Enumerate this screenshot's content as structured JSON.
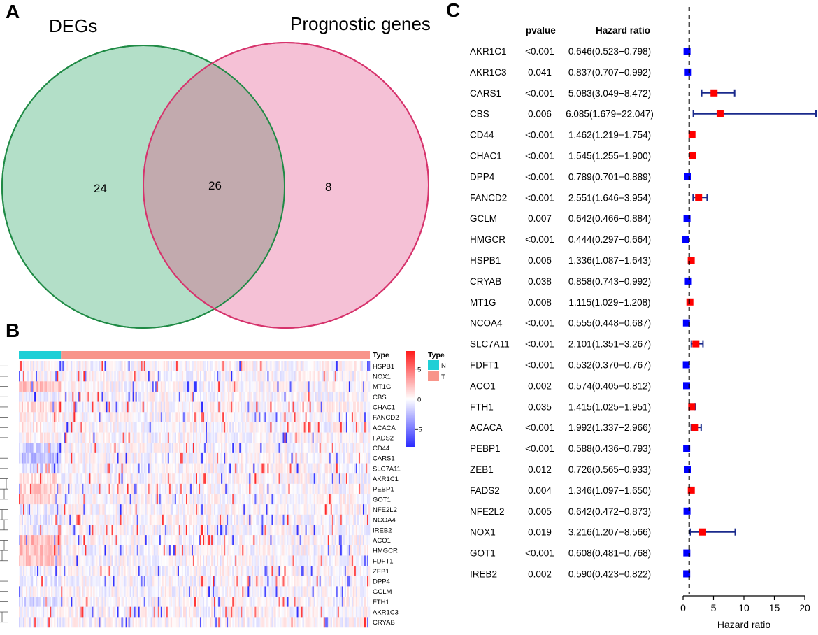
{
  "panels": {
    "a": "A",
    "b": "B",
    "c": "C"
  },
  "chart_data": [
    {
      "type": "venn",
      "sets": [
        {
          "name": "DEGs",
          "color": "#b3dfc8",
          "stroke": "#1f8a45"
        },
        {
          "name": "Prognostic genes",
          "color": "#f5c1d6",
          "stroke": "#d6336c"
        }
      ],
      "only_left": 24,
      "intersection": 26,
      "only_right": 8,
      "intersection_color": "#c2aaae"
    },
    {
      "type": "heatmap",
      "column_annotation_title": "Type",
      "groups": [
        {
          "label": "N",
          "color": "#1fcfd6",
          "fraction": 0.12
        },
        {
          "label": "T",
          "color": "#f8958a",
          "fraction": 0.88
        }
      ],
      "legend_title": "Type",
      "color_scale": {
        "min": -8,
        "max": 8,
        "ticks": [
          5,
          0,
          -5
        ],
        "low": "#2a2aff",
        "mid": "#ffffff",
        "high": "#ff1a1a"
      },
      "rows": [
        "HSPB1",
        "NOX1",
        "MT1G",
        "CBS",
        "CHAC1",
        "FANCD2",
        "ACACA",
        "FADS2",
        "CD44",
        "CARS1",
        "SLC7A11",
        "AKR1C1",
        "PEBP1",
        "GOT1",
        "NFE2L2",
        "NCOA4",
        "IREB2",
        "ACO1",
        "HMGCR",
        "FDFT1",
        "ZEB1",
        "DPP4",
        "GCLM",
        "FTH1",
        "AKR1C3",
        "CRYAB"
      ],
      "normal_group_bias": [
        -0.1,
        0.05,
        1.6,
        -0.25,
        0.8,
        0.25,
        0.5,
        0.2,
        -1.1,
        -1.4,
        -0.9,
        0.8,
        1.1,
        1.2,
        -0.3,
        -0.45,
        -0.4,
        1.6,
        1.4,
        1.2,
        -0.2,
        -0.5,
        -0.1,
        -0.8,
        -0.2,
        -0.3
      ]
    },
    {
      "type": "forest",
      "col_headers": {
        "pvalue": "pvalue",
        "hr": "Hazard ratio"
      },
      "xlabel": "Hazard ratio",
      "xlim": [
        0,
        21
      ],
      "xticks": [
        0,
        5,
        10,
        15,
        20
      ],
      "reference_line": 1,
      "high_color": "#ff0000",
      "low_color": "#0000ff",
      "ci_color": "#1a2a8c",
      "genes": [
        {
          "gene": "AKR1C1",
          "pvalue": "<0.001",
          "hr_text": "0.646(0.523−0.798)",
          "hr": 0.646,
          "lo": 0.523,
          "hi": 0.798
        },
        {
          "gene": "AKR1C3",
          "pvalue": "0.041",
          "hr_text": "0.837(0.707−0.992)",
          "hr": 0.837,
          "lo": 0.707,
          "hi": 0.992
        },
        {
          "gene": "CARS1",
          "pvalue": "<0.001",
          "hr_text": "5.083(3.049−8.472)",
          "hr": 5.083,
          "lo": 3.049,
          "hi": 8.472
        },
        {
          "gene": "CBS",
          "pvalue": "0.006",
          "hr_text": "6.085(1.679−22.047)",
          "hr": 6.085,
          "lo": 1.679,
          "hi": 22.047
        },
        {
          "gene": "CD44",
          "pvalue": "<0.001",
          "hr_text": "1.462(1.219−1.754)",
          "hr": 1.462,
          "lo": 1.219,
          "hi": 1.754
        },
        {
          "gene": "CHAC1",
          "pvalue": "<0.001",
          "hr_text": "1.545(1.255−1.900)",
          "hr": 1.545,
          "lo": 1.255,
          "hi": 1.9
        },
        {
          "gene": "DPP4",
          "pvalue": "<0.001",
          "hr_text": "0.789(0.701−0.889)",
          "hr": 0.789,
          "lo": 0.701,
          "hi": 0.889
        },
        {
          "gene": "FANCD2",
          "pvalue": "<0.001",
          "hr_text": "2.551(1.646−3.954)",
          "hr": 2.551,
          "lo": 1.646,
          "hi": 3.954
        },
        {
          "gene": "GCLM",
          "pvalue": "0.007",
          "hr_text": "0.642(0.466−0.884)",
          "hr": 0.642,
          "lo": 0.466,
          "hi": 0.884
        },
        {
          "gene": "HMGCR",
          "pvalue": "<0.001",
          "hr_text": "0.444(0.297−0.664)",
          "hr": 0.444,
          "lo": 0.297,
          "hi": 0.664
        },
        {
          "gene": "HSPB1",
          "pvalue": "0.006",
          "hr_text": "1.336(1.087−1.643)",
          "hr": 1.336,
          "lo": 1.087,
          "hi": 1.643
        },
        {
          "gene": "CRYAB",
          "pvalue": "0.038",
          "hr_text": "0.858(0.743−0.992)",
          "hr": 0.858,
          "lo": 0.743,
          "hi": 0.992
        },
        {
          "gene": "MT1G",
          "pvalue": "0.008",
          "hr_text": "1.115(1.029−1.208)",
          "hr": 1.115,
          "lo": 1.029,
          "hi": 1.208
        },
        {
          "gene": "NCOA4",
          "pvalue": "<0.001",
          "hr_text": "0.555(0.448−0.687)",
          "hr": 0.555,
          "lo": 0.448,
          "hi": 0.687
        },
        {
          "gene": "SLC7A11",
          "pvalue": "<0.001",
          "hr_text": "2.101(1.351−3.267)",
          "hr": 2.101,
          "lo": 1.351,
          "hi": 3.267
        },
        {
          "gene": "FDFT1",
          "pvalue": "<0.001",
          "hr_text": "0.532(0.370−0.767)",
          "hr": 0.532,
          "lo": 0.37,
          "hi": 0.767
        },
        {
          "gene": "ACO1",
          "pvalue": "0.002",
          "hr_text": "0.574(0.405−0.812)",
          "hr": 0.574,
          "lo": 0.405,
          "hi": 0.812
        },
        {
          "gene": "FTH1",
          "pvalue": "0.035",
          "hr_text": "1.415(1.025−1.951)",
          "hr": 1.415,
          "lo": 1.025,
          "hi": 1.951
        },
        {
          "gene": "ACACA",
          "pvalue": "<0.001",
          "hr_text": "1.992(1.337−2.966)",
          "hr": 1.992,
          "lo": 1.337,
          "hi": 2.966
        },
        {
          "gene": "PEBP1",
          "pvalue": "<0.001",
          "hr_text": "0.588(0.436−0.793)",
          "hr": 0.588,
          "lo": 0.436,
          "hi": 0.793
        },
        {
          "gene": "ZEB1",
          "pvalue": "0.012",
          "hr_text": "0.726(0.565−0.933)",
          "hr": 0.726,
          "lo": 0.565,
          "hi": 0.933
        },
        {
          "gene": "FADS2",
          "pvalue": "0.004",
          "hr_text": "1.346(1.097−1.650)",
          "hr": 1.346,
          "lo": 1.097,
          "hi": 1.65
        },
        {
          "gene": "NFE2L2",
          "pvalue": "0.005",
          "hr_text": "0.642(0.472−0.873)",
          "hr": 0.642,
          "lo": 0.472,
          "hi": 0.873
        },
        {
          "gene": "NOX1",
          "pvalue": "0.019",
          "hr_text": "3.216(1.207−8.566)",
          "hr": 3.216,
          "lo": 1.207,
          "hi": 8.566
        },
        {
          "gene": "GOT1",
          "pvalue": "<0.001",
          "hr_text": "0.608(0.481−0.768)",
          "hr": 0.608,
          "lo": 0.481,
          "hi": 0.768
        },
        {
          "gene": "IREB2",
          "pvalue": "0.002",
          "hr_text": "0.590(0.423−0.822)",
          "hr": 0.59,
          "lo": 0.423,
          "hi": 0.822
        }
      ]
    }
  ]
}
